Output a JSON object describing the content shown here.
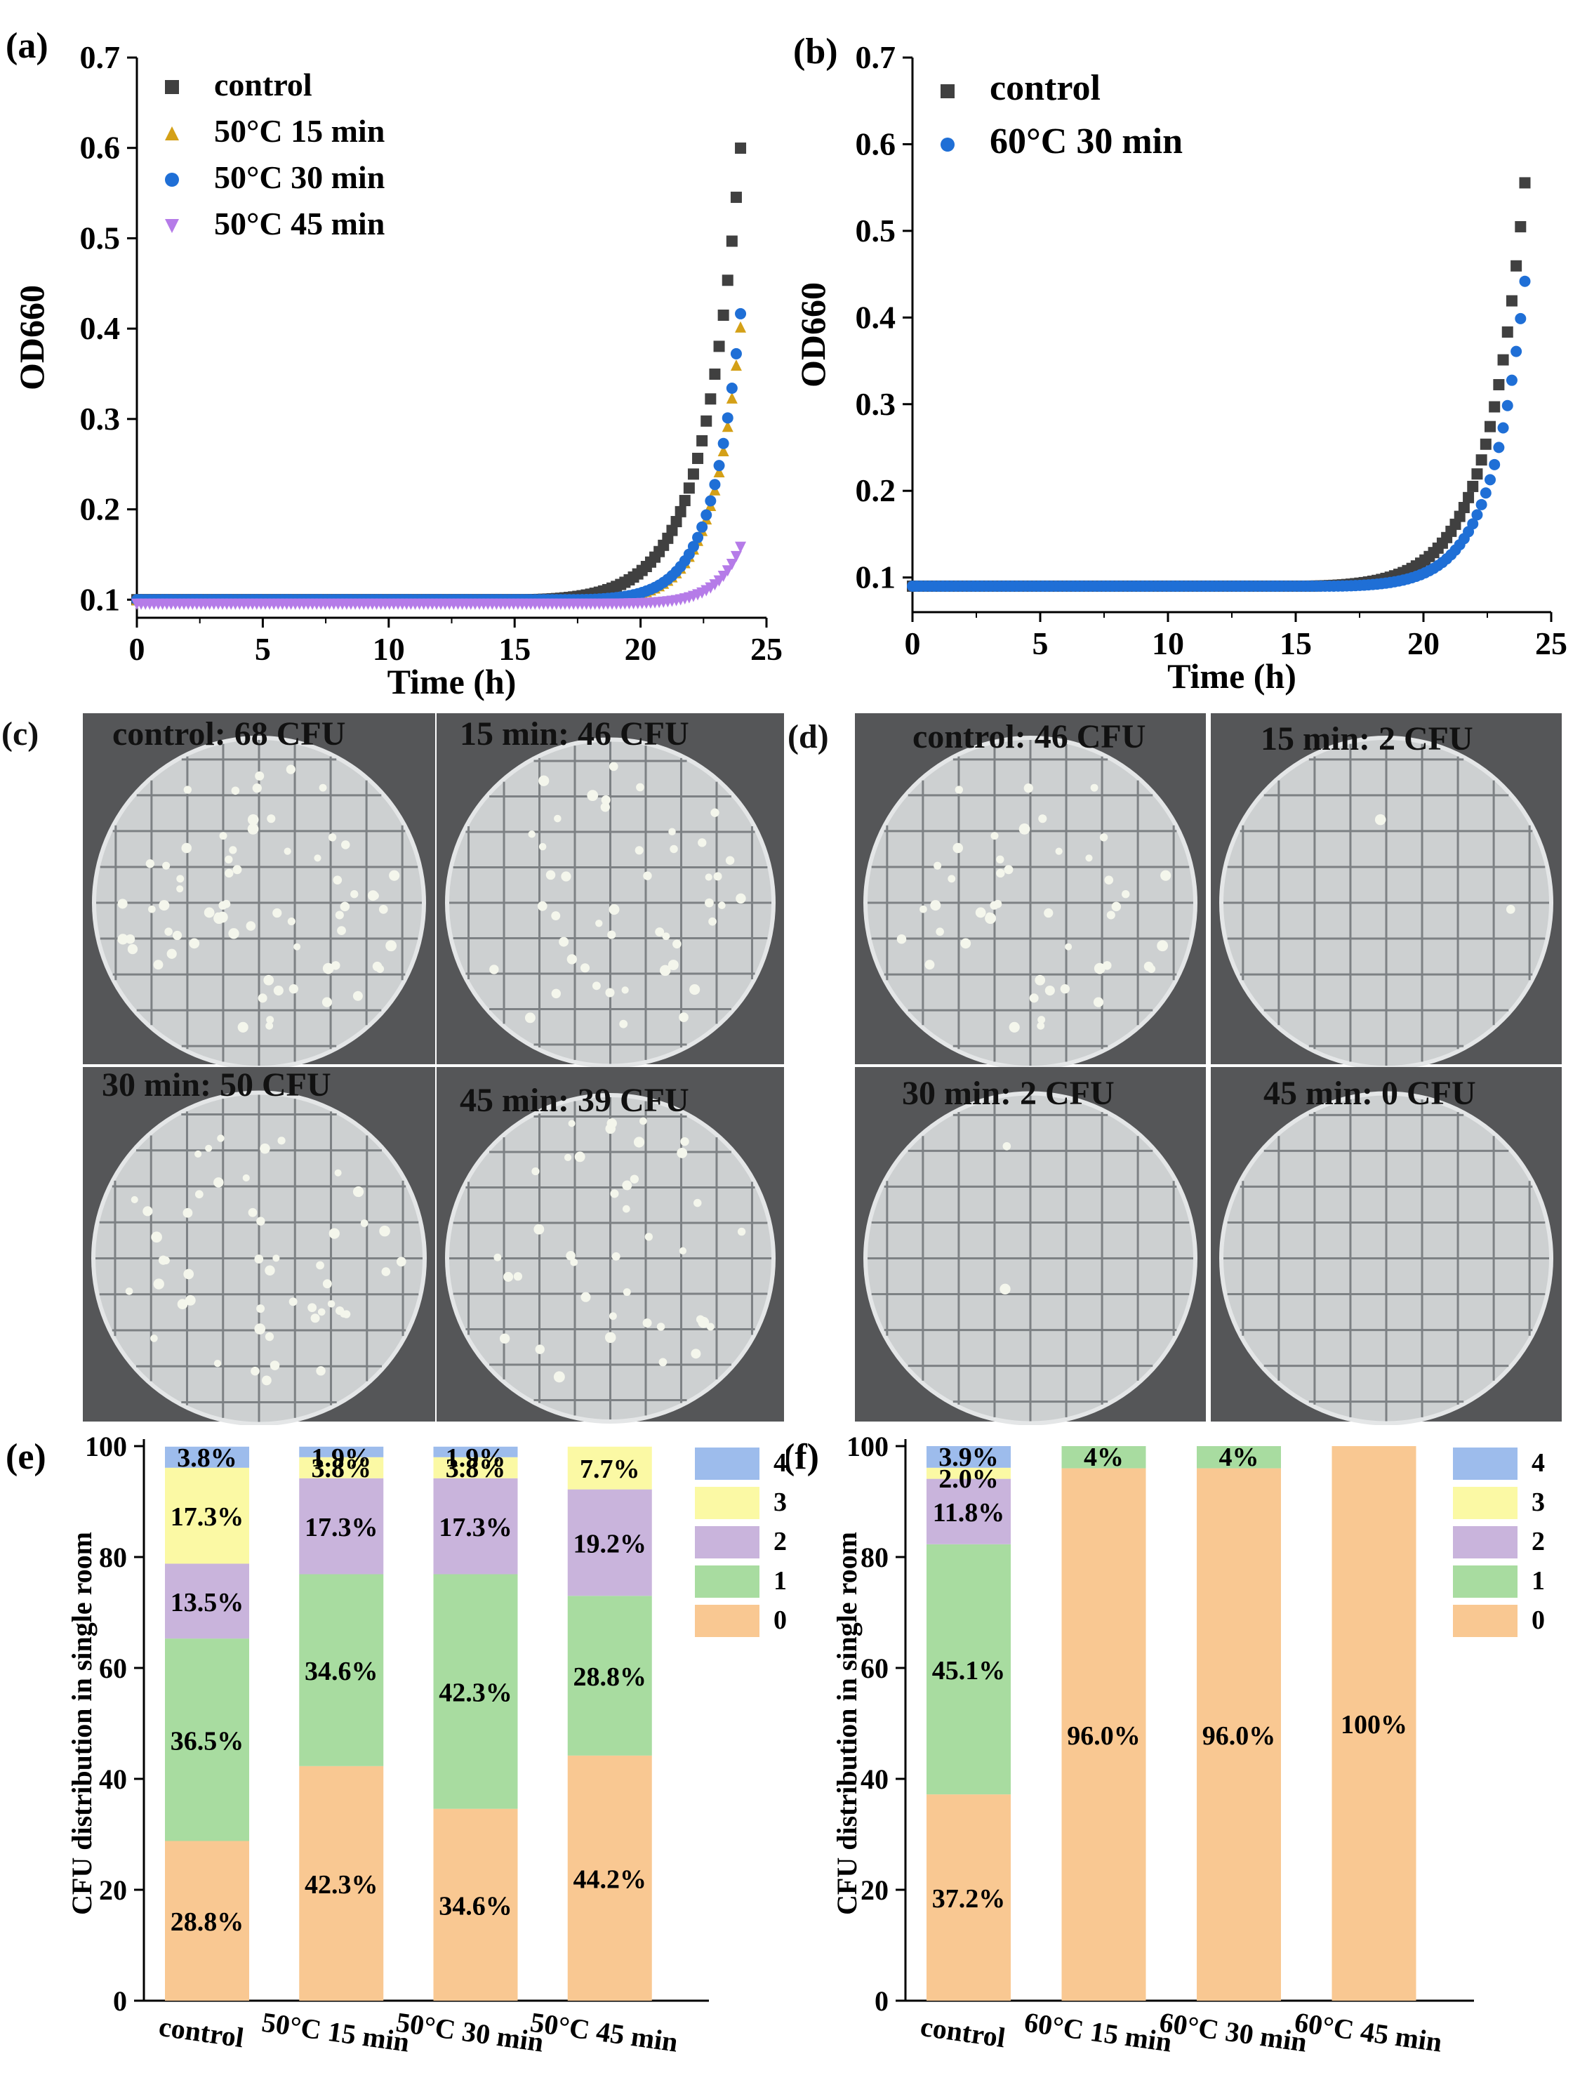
{
  "panel_labels": {
    "a": "(a)",
    "b": "(b)",
    "c": "(c)",
    "d": "(d)",
    "e": "(e)",
    "f": "(f)"
  },
  "plates_c": [
    "control: 68 CFU",
    "15 min: 46 CFU",
    "30 min: 50 CFU",
    "45 min: 39 CFU"
  ],
  "plates_d": [
    "control: 46 CFU",
    "15 min: 2 CFU",
    "30 min: 2 CFU",
    "45 min: 0 CFU"
  ],
  "colors": {
    "control": "#404040",
    "t15": "#d4a017",
    "t30": "#1f6fd6",
    "t45": "#b57be8",
    "c0": "#f9c892",
    "c1": "#a8dca0",
    "c2": "#c9b4dc",
    "c3": "#fbf9a4",
    "c4": "#9dbcec",
    "plate_bg": "#555658",
    "agar": "#cdd0d1"
  },
  "chart_data": [
    {
      "id": "a",
      "type": "scatter",
      "title": "",
      "xlabel": "Time (h)",
      "ylabel": "OD660",
      "xlim": [
        0,
        25
      ],
      "ylim": [
        0.08,
        0.7
      ],
      "xticks": [
        "0",
        "5",
        "10",
        "15",
        "20",
        "25"
      ],
      "yticks": [
        "0.1",
        "0.2",
        "0.3",
        "0.4",
        "0.5",
        "0.6",
        "0.7"
      ],
      "legend": "top-left",
      "series": [
        {
          "name": "control",
          "marker": "square",
          "color_key": "control",
          "base": 0.1,
          "lag": 17.5,
          "end_t": 24,
          "end": 0.61
        },
        {
          "name": "50°C 15 min",
          "marker": "triangle-up",
          "color_key": "t15",
          "base": 0.1,
          "lag": 19.5,
          "end_t": 24,
          "end": 0.41
        },
        {
          "name": "50°C 30 min",
          "marker": "circle",
          "color_key": "t30",
          "base": 0.1,
          "lag": 19.5,
          "end_t": 24,
          "end": 0.425
        },
        {
          "name": "50°C 45 min",
          "marker": "triangle-down",
          "color_key": "t45",
          "base": 0.095,
          "lag": 20.5,
          "end_t": 24,
          "end": 0.16
        }
      ]
    },
    {
      "id": "b",
      "type": "scatter",
      "title": "",
      "xlabel": "Time (h)",
      "ylabel": "OD660",
      "xlim": [
        0,
        25
      ],
      "ylim": [
        0.06,
        0.7
      ],
      "xticks": [
        "0",
        "5",
        "10",
        "15",
        "20",
        "25"
      ],
      "yticks": [
        "0.1",
        "0.2",
        "0.3",
        "0.4",
        "0.5",
        "0.6",
        "0.7"
      ],
      "legend": "top-left",
      "series": [
        {
          "name": "control",
          "marker": "square",
          "color_key": "control",
          "base": 0.09,
          "lag": 17.5,
          "end_t": 24,
          "end": 0.565
        },
        {
          "name": "60°C 30 min",
          "marker": "circle",
          "color_key": "t30",
          "base": 0.09,
          "lag": 18.5,
          "end_t": 24,
          "end": 0.45
        }
      ]
    },
    {
      "id": "e",
      "type": "bar",
      "stacked": true,
      "ylabel": "CFU distribution in single room",
      "ylim": [
        0,
        100
      ],
      "yticks": [
        "0",
        "20",
        "40",
        "60",
        "80",
        "100"
      ],
      "categories": [
        "control",
        "50°C 15 min",
        "50°C 30 min",
        "50°C 45 min"
      ],
      "legend": [
        "4",
        "3",
        "2",
        "1",
        "0"
      ],
      "series": [
        {
          "name": "0",
          "color_key": "c0",
          "values": [
            28.8,
            42.3,
            34.6,
            44.2
          ],
          "labels": [
            "28.8%",
            "42.3%",
            "34.6%",
            "44.2%"
          ]
        },
        {
          "name": "1",
          "color_key": "c1",
          "values": [
            36.5,
            34.6,
            42.3,
            28.8
          ],
          "labels": [
            "36.5%",
            "34.6%",
            "42.3%",
            "28.8%"
          ]
        },
        {
          "name": "2",
          "color_key": "c2",
          "values": [
            13.5,
            17.3,
            17.3,
            19.2
          ],
          "labels": [
            "13.5%",
            "17.3%",
            "17.3%",
            "19.2%"
          ]
        },
        {
          "name": "3",
          "color_key": "c3",
          "values": [
            17.3,
            3.8,
            3.8,
            7.7
          ],
          "labels": [
            "17.3%",
            "3.8%",
            "3.8%",
            "7.7%"
          ]
        },
        {
          "name": "4",
          "color_key": "c4",
          "values": [
            3.8,
            1.9,
            1.9,
            0
          ],
          "labels": [
            "3.8%",
            "1.9%",
            "1.9%",
            ""
          ]
        }
      ]
    },
    {
      "id": "f",
      "type": "bar",
      "stacked": true,
      "ylabel": "CFU distribution in single room",
      "ylim": [
        0,
        100
      ],
      "yticks": [
        "0",
        "20",
        "40",
        "60",
        "80",
        "100"
      ],
      "categories": [
        "control",
        "60°C 15 min",
        "60°C 30 min",
        "60°C 45 min"
      ],
      "legend": [
        "4",
        "3",
        "2",
        "1",
        "0"
      ],
      "series": [
        {
          "name": "0",
          "color_key": "c0",
          "values": [
            37.2,
            96.0,
            96.0,
            100
          ],
          "labels": [
            "37.2%",
            "96.0%",
            "96.0%",
            "100%"
          ]
        },
        {
          "name": "1",
          "color_key": "c1",
          "values": [
            45.1,
            4,
            4,
            0
          ],
          "labels": [
            "45.1%",
            "4%",
            "4%",
            ""
          ]
        },
        {
          "name": "2",
          "color_key": "c2",
          "values": [
            11.8,
            0,
            0,
            0
          ],
          "labels": [
            "11.8%",
            "",
            "",
            ""
          ]
        },
        {
          "name": "3",
          "color_key": "c3",
          "values": [
            2.0,
            0,
            0,
            0
          ],
          "labels": [
            "2.0%",
            "",
            "",
            ""
          ]
        },
        {
          "name": "4",
          "color_key": "c4",
          "values": [
            3.9,
            0,
            0,
            0
          ],
          "labels": [
            "3.9%",
            "",
            "",
            ""
          ]
        }
      ]
    }
  ]
}
